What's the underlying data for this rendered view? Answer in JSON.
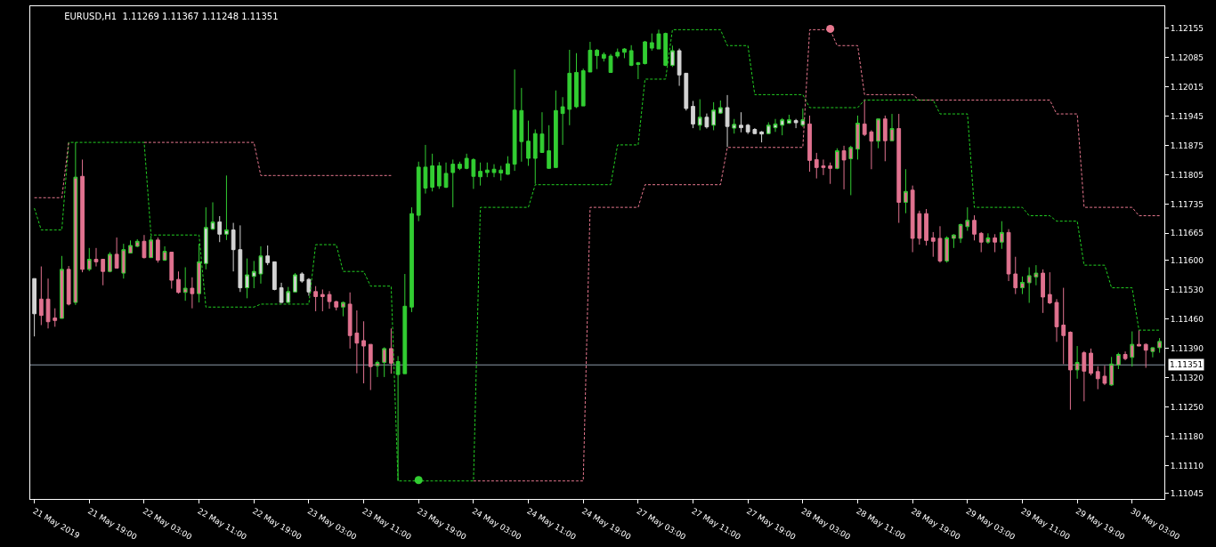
{
  "chart_data": {
    "type": "candlestick",
    "title": "EURUSD,H1  1.11269 1.11367 1.11248 1.11351",
    "categories": [
      "21 May 2019",
      null,
      null,
      null,
      null,
      null,
      null,
      null,
      "21 May 19:00",
      null,
      null,
      null,
      null,
      null,
      null,
      null,
      "22 May 03:00",
      null,
      null,
      null,
      null,
      null,
      null,
      null,
      "22 May 11:00",
      null,
      null,
      null,
      null,
      null,
      null,
      null,
      "22 May 19:00",
      null,
      null,
      null,
      null,
      null,
      null,
      null,
      "23 May 03:00",
      null,
      null,
      null,
      null,
      null,
      null,
      null,
      "23 May 11:00",
      null,
      null,
      null,
      null,
      null,
      null,
      null,
      "23 May 19:00",
      null,
      null,
      null,
      null,
      null,
      null,
      null,
      "24 May 03:00",
      null,
      null,
      null,
      null,
      null,
      null,
      null,
      "24 May 11:00",
      null,
      null,
      null,
      null,
      null,
      null,
      null,
      "24 May 19:00",
      null,
      null,
      null,
      null,
      null,
      null,
      null,
      "27 May 03:00",
      null,
      null,
      null,
      null,
      null,
      null,
      null,
      "27 May 11:00",
      null,
      null,
      null,
      null,
      null,
      null,
      null,
      "27 May 19:00",
      null,
      null,
      null,
      null,
      null,
      null,
      null,
      "28 May 03:00",
      null,
      null,
      null,
      null,
      null,
      null,
      null,
      "28 May 11:00",
      null,
      null,
      null,
      null,
      null,
      null,
      null,
      "28 May 19:00",
      null,
      null,
      null,
      null,
      null,
      null,
      null,
      "29 May 03:00",
      null,
      null,
      null,
      null,
      null,
      null,
      null,
      "29 May 11:00",
      null,
      null,
      null,
      null,
      null,
      null,
      null,
      "29 May 19:00",
      null,
      null,
      null,
      null,
      null,
      null,
      null,
      "30 May 03:00",
      null,
      null,
      null,
      null
    ],
    "ohlc": [
      [
        1.11557,
        1.11557,
        1.11419,
        1.11473
      ],
      [
        1.11508,
        1.11586,
        1.11446,
        1.11469
      ],
      [
        1.11508,
        1.11557,
        1.11438,
        1.11454
      ],
      [
        1.11463,
        1.11486,
        1.11442,
        1.11457
      ],
      [
        1.11462,
        1.11611,
        1.11462,
        1.11579
      ],
      [
        1.11579,
        1.11587,
        1.11493,
        1.11496
      ],
      [
        1.115,
        1.11882,
        1.11494,
        1.11799
      ],
      [
        1.11801,
        1.11841,
        1.11572,
        1.11579
      ],
      [
        1.11579,
        1.1163,
        1.11575,
        1.11603
      ],
      [
        1.11603,
        1.1163,
        1.11586,
        1.11597
      ],
      [
        1.11603,
        1.11603,
        1.11541,
        1.11574
      ],
      [
        1.11574,
        1.1162,
        1.11572,
        1.11615
      ],
      [
        1.11615,
        1.11655,
        1.11582,
        1.11582
      ],
      [
        1.1157,
        1.1164,
        1.11557,
        1.11626
      ],
      [
        1.11618,
        1.11648,
        1.11618,
        1.11636
      ],
      [
        1.11634,
        1.11651,
        1.11632,
        1.11646
      ],
      [
        1.11646,
        1.11661,
        1.11605,
        1.11607
      ],
      [
        1.11607,
        1.11659,
        1.11607,
        1.11649
      ],
      [
        1.11649,
        1.11655,
        1.11595,
        1.11601
      ],
      [
        1.11601,
        1.11634,
        1.11599,
        1.11622
      ],
      [
        1.1162,
        1.1162,
        1.11533,
        1.11553
      ],
      [
        1.11555,
        1.11574,
        1.11521,
        1.11524
      ],
      [
        1.11524,
        1.11584,
        1.11504,
        1.11534
      ],
      [
        1.11534,
        1.1156,
        1.11486,
        1.11521
      ],
      [
        1.11521,
        1.1164,
        1.115,
        1.11597
      ],
      [
        1.11593,
        1.11727,
        1.11579,
        1.11679
      ],
      [
        1.11675,
        1.11739,
        1.11673,
        1.11692
      ],
      [
        1.11692,
        1.11706,
        1.11644,
        1.11663
      ],
      [
        1.11663,
        1.11803,
        1.11649,
        1.11673
      ],
      [
        1.11673,
        1.1169,
        1.11574,
        1.11626
      ],
      [
        1.11626,
        1.11684,
        1.11525,
        1.11535
      ],
      [
        1.11535,
        1.11605,
        1.1151,
        1.11566
      ],
      [
        1.11562,
        1.11599,
        1.11534,
        1.11574
      ],
      [
        1.11568,
        1.11634,
        1.11545,
        1.11611
      ],
      [
        1.11611,
        1.11636,
        1.11589,
        1.11595
      ],
      [
        1.11597,
        1.11597,
        1.11529,
        1.11531
      ],
      [
        1.11535,
        1.11547,
        1.11499,
        1.115
      ],
      [
        1.115,
        1.11537,
        1.11499,
        1.11526
      ],
      [
        1.11525,
        1.1157,
        1.11525,
        1.11566
      ],
      [
        1.11568,
        1.11572,
        1.11547,
        1.11551
      ],
      [
        1.11555,
        1.11558,
        1.11516,
        1.11525
      ],
      [
        1.11526,
        1.11539,
        1.11479,
        1.11514
      ],
      [
        1.11519,
        1.11531,
        1.11479,
        1.11514
      ],
      [
        1.11519,
        1.11527,
        1.11485,
        1.11502
      ],
      [
        1.11502,
        1.11504,
        1.11481,
        1.11489
      ],
      [
        1.11489,
        1.11502,
        1.11467,
        1.115
      ],
      [
        1.11496,
        1.11524,
        1.1139,
        1.11421
      ],
      [
        1.11427,
        1.11481,
        1.11331,
        1.11403
      ],
      [
        1.11409,
        1.11455,
        1.11307,
        1.11396
      ],
      [
        1.114,
        1.114,
        1.11291,
        1.11347
      ],
      [
        1.11349,
        1.11361,
        1.11322,
        1.11357
      ],
      [
        1.11357,
        1.11393,
        1.11322,
        1.1139
      ],
      [
        1.1139,
        1.11438,
        1.1133,
        1.11355
      ],
      [
        1.11359,
        1.11372,
        1.11074,
        1.11328
      ],
      [
        1.1133,
        1.11568,
        1.1133,
        1.11491
      ],
      [
        1.11489,
        1.11727,
        1.11477,
        1.11712
      ],
      [
        1.11708,
        1.11836,
        1.11694,
        1.11823
      ],
      [
        1.11823,
        1.11876,
        1.1176,
        1.11773
      ],
      [
        1.11775,
        1.11855,
        1.11765,
        1.11826
      ],
      [
        1.11826,
        1.11835,
        1.11771,
        1.11778
      ],
      [
        1.11775,
        1.11834,
        1.11773,
        1.11808
      ],
      [
        1.1181,
        1.11841,
        1.11727,
        1.1183
      ],
      [
        1.1182,
        1.11836,
        1.11816,
        1.1183
      ],
      [
        1.1182,
        1.11855,
        1.11818,
        1.11844
      ],
      [
        1.11841,
        1.11844,
        1.11771,
        1.11801
      ],
      [
        1.118,
        1.11834,
        1.11779,
        1.11813
      ],
      [
        1.1181,
        1.11834,
        1.11799,
        1.11816
      ],
      [
        1.1181,
        1.1183,
        1.11799,
        1.11818
      ],
      [
        1.11816,
        1.11826,
        1.11791,
        1.11809
      ],
      [
        1.11806,
        1.11849,
        1.11805,
        1.11831
      ],
      [
        1.1183,
        1.12056,
        1.11814,
        1.11959
      ],
      [
        1.11958,
        1.12012,
        1.11836,
        1.11884
      ],
      [
        1.11885,
        1.11934,
        1.11826,
        1.11844
      ],
      [
        1.11844,
        1.11913,
        1.11783,
        1.11903
      ],
      [
        1.11902,
        1.11954,
        1.11857,
        1.11858
      ],
      [
        1.11862,
        1.11923,
        1.1182,
        1.1182
      ],
      [
        1.11822,
        1.12006,
        1.11822,
        1.11958
      ],
      [
        1.11951,
        1.1199,
        1.11876,
        1.11967
      ],
      [
        1.11961,
        1.12103,
        1.11923,
        1.12047
      ],
      [
        1.12049,
        1.12095,
        1.11964,
        1.11967
      ],
      [
        1.11969,
        1.12058,
        1.11969,
        1.12053
      ],
      [
        1.1205,
        1.12122,
        1.1205,
        1.12102
      ],
      [
        1.12102,
        1.12105,
        1.12057,
        1.12089
      ],
      [
        1.12092,
        1.12097,
        1.12075,
        1.12083
      ],
      [
        1.12049,
        1.12093,
        1.12049,
        1.12088
      ],
      [
        1.12088,
        1.12106,
        1.12083,
        1.12097
      ],
      [
        1.12097,
        1.12107,
        1.12083,
        1.12105
      ],
      [
        1.12101,
        1.12114,
        1.12064,
        1.12066
      ],
      [
        1.12068,
        1.12074,
        1.12033,
        1.12072
      ],
      [
        1.1207,
        1.12124,
        1.12068,
        1.12122
      ],
      [
        1.12107,
        1.12142,
        1.12101,
        1.1212
      ],
      [
        1.12105,
        1.12151,
        1.12105,
        1.12141
      ],
      [
        1.12142,
        1.12144,
        1.12064,
        1.12066
      ],
      [
        1.12066,
        1.12113,
        1.12062,
        1.12101
      ],
      [
        1.12101,
        1.12106,
        1.12017,
        1.12043
      ],
      [
        1.12047,
        1.12047,
        1.11958,
        1.11963
      ],
      [
        1.11968,
        1.11981,
        1.11916,
        1.11926
      ],
      [
        1.11923,
        1.11985,
        1.11911,
        1.11942
      ],
      [
        1.11942,
        1.11951,
        1.11915,
        1.11919
      ],
      [
        1.11923,
        1.11978,
        1.11911,
        1.11959
      ],
      [
        1.11952,
        1.11982,
        1.1195,
        1.11965
      ],
      [
        1.11965,
        1.11995,
        1.11871,
        1.1192
      ],
      [
        1.11916,
        1.11938,
        1.11903,
        1.11925
      ],
      [
        1.11923,
        1.11954,
        1.11906,
        1.11917
      ],
      [
        1.11923,
        1.11926,
        1.11902,
        1.11907
      ],
      [
        1.11913,
        1.11916,
        1.11902,
        1.11903
      ],
      [
        1.11907,
        1.11909,
        1.11882,
        1.11902
      ],
      [
        1.11903,
        1.1193,
        1.11902,
        1.11923
      ],
      [
        1.11917,
        1.11938,
        1.11907,
        1.11926
      ],
      [
        1.11923,
        1.1194,
        1.11899,
        1.11936
      ],
      [
        1.11928,
        1.11948,
        1.11926,
        1.11936
      ],
      [
        1.11934,
        1.11938,
        1.11916,
        1.11929
      ],
      [
        1.11923,
        1.11963,
        1.11919,
        1.11936
      ],
      [
        1.11926,
        1.11946,
        1.11812,
        1.11839
      ],
      [
        1.11841,
        1.11857,
        1.11796,
        1.11822
      ],
      [
        1.11826,
        1.11841,
        1.11804,
        1.11822
      ],
      [
        1.11826,
        1.11834,
        1.11783,
        1.1182
      ],
      [
        1.1182,
        1.11868,
        1.11818,
        1.11862
      ],
      [
        1.11862,
        1.11874,
        1.1177,
        1.1184
      ],
      [
        1.11843,
        1.11874,
        1.11756,
        1.1187
      ],
      [
        1.11866,
        1.11946,
        1.11841,
        1.11928
      ],
      [
        1.11926,
        1.11985,
        1.11897,
        1.11901
      ],
      [
        1.11907,
        1.11911,
        1.11818,
        1.11885
      ],
      [
        1.11885,
        1.11938,
        1.11868,
        1.11938
      ],
      [
        1.11938,
        1.11946,
        1.11837,
        1.11886
      ],
      [
        1.11886,
        1.1195,
        1.11886,
        1.11915
      ],
      [
        1.11915,
        1.1195,
        1.1169,
        1.11739
      ],
      [
        1.11739,
        1.11818,
        1.11713,
        1.11765
      ],
      [
        1.11768,
        1.11779,
        1.1162,
        1.11653
      ],
      [
        1.11712,
        1.11719,
        1.11638,
        1.11653
      ],
      [
        1.11712,
        1.11723,
        1.11636,
        1.11648
      ],
      [
        1.11654,
        1.11668,
        1.11609,
        1.11646
      ],
      [
        1.11653,
        1.11682,
        1.11595,
        1.11599
      ],
      [
        1.11599,
        1.11658,
        1.11595,
        1.11654
      ],
      [
        1.11653,
        1.11663,
        1.1163,
        1.11661
      ],
      [
        1.11653,
        1.11688,
        1.11642,
        1.11686
      ],
      [
        1.11681,
        1.11727,
        1.11671,
        1.11696
      ],
      [
        1.11696,
        1.11708,
        1.11648,
        1.11663
      ],
      [
        1.11665,
        1.11668,
        1.1162,
        1.11644
      ],
      [
        1.11644,
        1.11665,
        1.1164,
        1.11654
      ],
      [
        1.11654,
        1.11663,
        1.1162,
        1.11644
      ],
      [
        1.11644,
        1.11694,
        1.11628,
        1.11667
      ],
      [
        1.11667,
        1.11675,
        1.11551,
        1.11568
      ],
      [
        1.11568,
        1.11609,
        1.1152,
        1.11535
      ],
      [
        1.11535,
        1.11562,
        1.1152,
        1.11548
      ],
      [
        1.11547,
        1.11584,
        1.11499,
        1.11564
      ],
      [
        1.11561,
        1.11589,
        1.11541,
        1.1157
      ],
      [
        1.1157,
        1.11579,
        1.11475,
        1.11513
      ],
      [
        1.11519,
        1.11572,
        1.11496,
        1.11499
      ],
      [
        1.115,
        1.11508,
        1.11406,
        1.11442
      ],
      [
        1.11446,
        1.11535,
        1.11353,
        1.11421
      ],
      [
        1.11429,
        1.11431,
        1.11244,
        1.11339
      ],
      [
        1.11339,
        1.11396,
        1.11318,
        1.11357
      ],
      [
        1.1138,
        1.11384,
        1.11264,
        1.11336
      ],
      [
        1.11379,
        1.1139,
        1.11326,
        1.11331
      ],
      [
        1.11335,
        1.11348,
        1.11293,
        1.11318
      ],
      [
        1.11324,
        1.11349,
        1.11303,
        1.11307
      ],
      [
        1.11303,
        1.1137,
        1.11301,
        1.11353
      ],
      [
        1.11351,
        1.1138,
        1.11341,
        1.11376
      ],
      [
        1.11376,
        1.11383,
        1.11362,
        1.11366
      ],
      [
        1.11369,
        1.11431,
        1.11347,
        1.114
      ],
      [
        1.114,
        1.11434,
        1.11396,
        1.11396
      ],
      [
        1.114,
        1.11402,
        1.11344,
        1.11386
      ],
      [
        1.11383,
        1.11393,
        1.11369,
        1.11392
      ],
      [
        1.11392,
        1.11415,
        1.1138,
        1.11407
      ]
    ],
    "colors": [
      "#d3d3d3",
      "#e0728f",
      "#e0728f",
      "#e0728f",
      "#e0728f",
      "#e0728f",
      "#e0728f",
      "#e0728f",
      "#e0728f",
      "#e0728f",
      "#e0728f",
      "#e0728f",
      "#e0728f",
      "#e0728f",
      "#e0728f",
      "#e0728f",
      "#e0728f",
      "#e0728f",
      "#e0728f",
      "#e0728f",
      "#e0728f",
      "#e0728f",
      "#e0728f",
      "#e0728f",
      "#e0728f",
      "#d3d3d3",
      "#d3d3d3",
      "#d3d3d3",
      "#d3d3d3",
      "#d3d3d3",
      "#d3d3d3",
      "#d3d3d3",
      "#d3d3d3",
      "#d3d3d3",
      "#d3d3d3",
      "#d3d3d3",
      "#d3d3d3",
      "#d3d3d3",
      "#d3d3d3",
      "#d3d3d3",
      "#d3d3d3",
      "#e0728f",
      "#e0728f",
      "#e0728f",
      "#e0728f",
      "#e0728f",
      "#e0728f",
      "#e0728f",
      "#e0728f",
      "#e0728f",
      "#e0728f",
      "#e0728f",
      "#e0728f",
      "#32cd32",
      "#32cd32",
      "#32cd32",
      "#32cd32",
      "#32cd32",
      "#32cd32",
      "#32cd32",
      "#32cd32",
      "#32cd32",
      "#32cd32",
      "#32cd32",
      "#32cd32",
      "#32cd32",
      "#32cd32",
      "#32cd32",
      "#32cd32",
      "#32cd32",
      "#32cd32",
      "#32cd32",
      "#32cd32",
      "#32cd32",
      "#32cd32",
      "#32cd32",
      "#32cd32",
      "#32cd32",
      "#32cd32",
      "#32cd32",
      "#32cd32",
      "#32cd32",
      "#32cd32",
      "#32cd32",
      "#32cd32",
      "#32cd32",
      "#32cd32",
      "#32cd32",
      "#32cd32",
      "#32cd32",
      "#32cd32",
      "#32cd32",
      "#32cd32",
      "#d3d3d3",
      "#d3d3d3",
      "#d3d3d3",
      "#d3d3d3",
      "#d3d3d3",
      "#d3d3d3",
      "#d3d3d3",
      "#d3d3d3",
      "#d3d3d3",
      "#d3d3d3",
      "#d3d3d3",
      "#d3d3d3",
      "#d3d3d3",
      "#d3d3d3",
      "#d3d3d3",
      "#d3d3d3",
      "#d3d3d3",
      "#d3d3d3",
      "#d3d3d3",
      "#d3d3d3",
      "#e0728f",
      "#e0728f",
      "#e0728f",
      "#e0728f",
      "#e0728f",
      "#e0728f",
      "#e0728f",
      "#e0728f",
      "#e0728f",
      "#e0728f",
      "#e0728f",
      "#e0728f",
      "#e0728f",
      "#e0728f",
      "#e0728f",
      "#e0728f",
      "#e0728f",
      "#e0728f",
      "#e0728f",
      "#e0728f",
      "#e0728f",
      "#e0728f",
      "#e0728f",
      "#e0728f",
      "#e0728f",
      "#e0728f",
      "#e0728f",
      "#e0728f",
      "#e0728f",
      "#e0728f",
      "#e0728f",
      "#e0728f",
      "#e0728f",
      "#e0728f",
      "#e0728f",
      "#e0728f",
      "#e0728f",
      "#e0728f",
      "#e0728f",
      "#e0728f",
      "#e0728f",
      "#e0728f",
      "#e0728f",
      "#e0728f",
      "#e0728f",
      "#e0728f",
      "#e0728f",
      "#e0728f",
      "#e0728f",
      "#e0728f",
      "#e0728f",
      "#e0728f"
    ],
    "series": [
      {
        "type": "line",
        "color": "#22d022",
        "line_style": "dashed",
        "values": [
          1.11725,
          1.11673,
          1.11673,
          1.11673,
          1.11673,
          1.11882,
          1.11882,
          1.11882,
          1.11882,
          1.11882,
          1.11882,
          1.11882,
          1.11882,
          1.11882,
          1.11882,
          1.11882,
          1.11882,
          1.11661,
          1.11661,
          1.11661,
          1.11661,
          1.11661,
          1.11661,
          1.11661,
          1.11661,
          1.11489,
          1.11489,
          1.11489,
          1.11489,
          1.11489,
          1.11489,
          1.11489,
          1.11489,
          1.11496,
          1.11496,
          1.11496,
          1.11496,
          1.11496,
          1.11496,
          1.11496,
          1.11496,
          1.11638,
          1.11638,
          1.11638,
          1.11638,
          1.11574,
          1.11574,
          1.11574,
          1.11574,
          1.11539,
          1.11539,
          1.11539,
          1.11539,
          1.11074,
          1.11074,
          1.11074,
          1.11074,
          1.11074,
          1.11074,
          1.11074,
          1.11074,
          1.11074,
          1.11074,
          1.11074,
          1.11074,
          1.11727,
          1.11727,
          1.11727,
          1.11727,
          1.11727,
          1.11727,
          1.11727,
          1.11727,
          1.11781,
          1.11781,
          1.11781,
          1.11781,
          1.11781,
          1.11781,
          1.11781,
          1.11781,
          1.11781,
          1.11781,
          1.11781,
          1.11781,
          1.11876,
          1.11876,
          1.11876,
          1.11876,
          1.12033,
          1.12033,
          1.12033,
          1.12033,
          1.12151,
          1.12151,
          1.12151,
          1.12151,
          1.12151,
          1.12151,
          1.12151,
          1.12151,
          1.12113,
          1.12113,
          1.12113,
          1.12113,
          1.11996,
          1.11996,
          1.11996,
          1.11996,
          1.11996,
          1.11996,
          1.11996,
          1.11996,
          1.11965,
          1.11965,
          1.11965,
          1.11965,
          1.11965,
          1.11965,
          1.11965,
          1.11965,
          1.11983,
          1.11983,
          1.11983,
          1.11983,
          1.11983,
          1.11983,
          1.11983,
          1.11983,
          1.11983,
          1.11983,
          1.11983,
          1.1195,
          1.1195,
          1.1195,
          1.1195,
          1.1195,
          1.11727,
          1.11727,
          1.11727,
          1.11727,
          1.11727,
          1.11727,
          1.11727,
          1.11727,
          1.11707,
          1.11707,
          1.11707,
          1.11707,
          1.11694,
          1.11694,
          1.11694,
          1.11694,
          1.11589,
          1.11589,
          1.11589,
          1.11589,
          1.11535,
          1.11535,
          1.11535,
          1.11535,
          1.11434,
          1.11434,
          1.11434,
          1.11434
        ]
      },
      {
        "type": "line",
        "color": "#e8788f",
        "line_style": "dashed",
        "values": [
          1.1175,
          1.1175,
          1.1175,
          1.1175,
          1.1175,
          1.11882,
          null,
          null,
          null,
          null,
          null,
          null,
          null,
          null,
          null,
          null,
          1.11882,
          1.11882,
          1.11882,
          1.11882,
          1.11882,
          1.11882,
          1.11882,
          1.11882,
          1.11882,
          1.11882,
          1.11882,
          1.11882,
          1.11882,
          1.11882,
          1.11882,
          1.11882,
          1.11882,
          1.11803,
          1.11803,
          1.11803,
          1.11803,
          1.11803,
          1.11803,
          1.11803,
          1.11803,
          1.11803,
          1.11803,
          1.11803,
          1.11803,
          1.11803,
          1.11803,
          1.11803,
          1.11803,
          1.11803,
          1.11803,
          1.11803,
          1.11803,
          null,
          null,
          null,
          null,
          null,
          null,
          null,
          null,
          null,
          null,
          null,
          1.11074,
          1.11074,
          1.11074,
          1.11074,
          1.11074,
          1.11074,
          1.11074,
          1.11074,
          1.11074,
          1.11074,
          1.11074,
          1.11074,
          1.11074,
          1.11074,
          1.11074,
          1.11074,
          1.11074,
          1.11727,
          1.11727,
          1.11727,
          1.11727,
          1.11727,
          1.11727,
          1.11727,
          1.11727,
          1.11781,
          1.11781,
          1.11781,
          1.11781,
          1.11781,
          1.11781,
          1.11781,
          1.11781,
          1.11781,
          1.11781,
          1.11781,
          1.11781,
          1.1187,
          1.1187,
          1.1187,
          1.1187,
          1.1187,
          1.1187,
          1.1187,
          1.1187,
          1.1187,
          1.1187,
          1.1187,
          1.1187,
          1.12151,
          1.12151,
          1.12151,
          1.12151,
          1.12113,
          1.12113,
          1.12113,
          1.12113,
          1.11996,
          1.11996,
          1.11996,
          1.11996,
          1.11996,
          1.11996,
          1.11996,
          1.11996,
          1.11983,
          1.11983,
          1.11983,
          1.11983,
          1.11983,
          1.11983,
          1.11983,
          1.11983,
          1.11983,
          1.11983,
          1.11983,
          1.11983,
          1.11983,
          1.11983,
          1.11983,
          1.11983,
          1.11983,
          1.11983,
          1.11983,
          1.11983,
          1.1195,
          1.1195,
          1.1195,
          1.1195,
          1.11727,
          1.11727,
          1.11727,
          1.11727,
          1.11727,
          1.11727,
          1.11727,
          1.11727,
          1.11707,
          1.11707,
          1.11707,
          1.11707
        ]
      },
      {
        "type": "scatter",
        "color": "#32cd32",
        "marker": "circle",
        "values": [
          null,
          null,
          null,
          null,
          null,
          null,
          null,
          null,
          null,
          null,
          null,
          null,
          null,
          null,
          null,
          null,
          null,
          null,
          null,
          null,
          null,
          null,
          null,
          null,
          null,
          null,
          null,
          null,
          null,
          null,
          null,
          null,
          null,
          null,
          null,
          null,
          null,
          null,
          null,
          null,
          null,
          null,
          null,
          null,
          null,
          null,
          null,
          null,
          null,
          null,
          null,
          null,
          null,
          null,
          null,
          null,
          1.11076,
          null,
          null,
          null,
          null,
          null,
          null,
          null,
          null,
          null,
          null,
          null,
          null,
          null,
          null,
          null,
          null,
          null,
          null,
          null,
          null,
          null,
          null,
          null,
          null,
          null,
          null,
          null,
          null,
          null,
          null,
          null,
          null,
          null,
          null,
          null,
          null,
          null,
          null,
          null,
          null,
          null,
          null,
          null,
          null,
          null,
          null,
          null,
          null,
          null,
          null,
          null,
          null,
          null,
          null,
          null,
          null,
          null,
          null,
          null,
          null,
          null,
          null,
          null,
          null,
          null,
          null,
          null,
          null,
          null,
          null,
          null,
          null,
          null,
          null,
          null,
          null,
          null,
          null,
          null,
          null,
          null,
          null,
          null,
          null,
          null,
          null,
          null,
          null,
          null,
          null,
          null,
          null,
          null,
          null,
          null,
          null,
          null,
          null,
          null,
          null,
          null,
          null,
          null,
          null,
          null,
          null,
          null,
          null
        ]
      },
      {
        "type": "scatter",
        "color": "#e8788f",
        "marker": "circle",
        "values": [
          null,
          null,
          null,
          null,
          null,
          null,
          null,
          null,
          null,
          null,
          null,
          null,
          null,
          null,
          null,
          null,
          null,
          null,
          null,
          null,
          null,
          null,
          null,
          null,
          null,
          null,
          null,
          null,
          null,
          null,
          null,
          null,
          null,
          null,
          null,
          null,
          null,
          null,
          null,
          null,
          null,
          null,
          null,
          null,
          null,
          null,
          null,
          null,
          null,
          null,
          null,
          null,
          null,
          null,
          null,
          null,
          null,
          null,
          null,
          null,
          null,
          null,
          null,
          null,
          null,
          null,
          null,
          null,
          null,
          null,
          null,
          null,
          null,
          null,
          null,
          null,
          null,
          null,
          null,
          null,
          null,
          null,
          null,
          null,
          null,
          null,
          null,
          null,
          null,
          null,
          null,
          null,
          null,
          null,
          null,
          null,
          null,
          null,
          null,
          null,
          null,
          null,
          null,
          null,
          null,
          null,
          null,
          null,
          null,
          null,
          null,
          null,
          null,
          null,
          null,
          null,
          1.12153,
          null,
          null,
          null,
          null,
          null,
          null,
          null,
          null,
          null,
          null,
          null,
          null,
          null,
          null,
          null,
          null,
          null,
          null,
          null,
          null,
          null,
          null,
          null,
          null,
          null,
          null,
          null,
          null,
          null,
          null,
          null,
          null,
          null,
          null,
          null,
          null,
          null,
          null,
          null,
          null,
          null,
          null,
          null,
          null,
          null,
          null,
          null,
          null
        ]
      }
    ],
    "ref_lines": [
      {
        "axis": "y",
        "value": 1.11351,
        "label": "1.11351",
        "color": "#8c9aa8"
      }
    ],
    "ylim": [
      1.11031,
      1.12207
    ],
    "yticks": [
      1.12155,
      1.12085,
      1.12015,
      1.11945,
      1.11875,
      1.11805,
      1.11735,
      1.11665,
      {
        "value": 1.116,
        "label": "1.11600"
      },
      {
        "value": 1.1153,
        "label": "1.11530"
      },
      {
        "value": 1.1146,
        "label": "1.11460"
      },
      {
        "value": 1.1139,
        "label": "1.11390"
      },
      {
        "value": 1.1132,
        "label": "1.11320"
      },
      {
        "value": 1.1125,
        "label": "1.11250"
      },
      {
        "value": 1.1118,
        "label": "1.11180"
      },
      {
        "value": 1.1111,
        "label": "1.11110"
      },
      1.11045
    ]
  }
}
